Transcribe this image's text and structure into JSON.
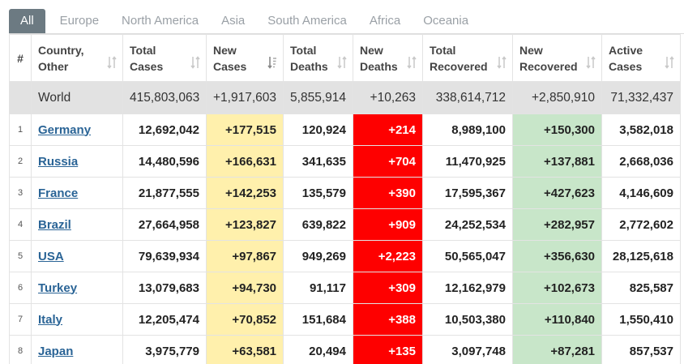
{
  "tabs": [
    "All",
    "Europe",
    "North America",
    "Asia",
    "South America",
    "Africa",
    "Oceania"
  ],
  "headers": {
    "idx": "#",
    "country": "Country, Other",
    "total_cases": "Total Cases",
    "new_cases": "New Cases",
    "total_deaths": "Total Deaths",
    "new_deaths": "New Deaths",
    "total_recovered": "Total Recovered",
    "new_recovered": "New Recovered",
    "active_cases": "Active Cases"
  },
  "world": {
    "country": "World",
    "total_cases": "415,803,063",
    "new_cases": "+1,917,603",
    "total_deaths": "5,855,914",
    "new_deaths": "+10,263",
    "total_recovered": "338,614,712",
    "new_recovered": "+2,850,910",
    "active_cases": "71,332,437"
  },
  "rows": [
    {
      "idx": "1",
      "country": "Germany",
      "total_cases": "12,692,042",
      "new_cases": "+177,515",
      "total_deaths": "120,924",
      "new_deaths": "+214",
      "total_recovered": "8,989,100",
      "new_recovered": "+150,300",
      "active_cases": "3,582,018"
    },
    {
      "idx": "2",
      "country": "Russia",
      "total_cases": "14,480,596",
      "new_cases": "+166,631",
      "total_deaths": "341,635",
      "new_deaths": "+704",
      "total_recovered": "11,470,925",
      "new_recovered": "+137,881",
      "active_cases": "2,668,036"
    },
    {
      "idx": "3",
      "country": "France",
      "total_cases": "21,877,555",
      "new_cases": "+142,253",
      "total_deaths": "135,579",
      "new_deaths": "+390",
      "total_recovered": "17,595,367",
      "new_recovered": "+427,623",
      "active_cases": "4,146,609"
    },
    {
      "idx": "4",
      "country": "Brazil",
      "total_cases": "27,664,958",
      "new_cases": "+123,827",
      "total_deaths": "639,822",
      "new_deaths": "+909",
      "total_recovered": "24,252,534",
      "new_recovered": "+282,957",
      "active_cases": "2,772,602"
    },
    {
      "idx": "5",
      "country": "USA",
      "total_cases": "79,639,934",
      "new_cases": "+97,867",
      "total_deaths": "949,269",
      "new_deaths": "+2,223",
      "total_recovered": "50,565,047",
      "new_recovered": "+356,630",
      "active_cases": "28,125,618"
    },
    {
      "idx": "6",
      "country": "Turkey",
      "total_cases": "13,079,683",
      "new_cases": "+94,730",
      "total_deaths": "91,117",
      "new_deaths": "+309",
      "total_recovered": "12,162,979",
      "new_recovered": "+102,673",
      "active_cases": "825,587"
    },
    {
      "idx": "7",
      "country": "Italy",
      "total_cases": "12,205,474",
      "new_cases": "+70,852",
      "total_deaths": "151,684",
      "new_deaths": "+388",
      "total_recovered": "10,503,380",
      "new_recovered": "+110,840",
      "active_cases": "1,550,410"
    },
    {
      "idx": "8",
      "country": "Japan",
      "total_cases": "3,975,779",
      "new_cases": "+63,581",
      "total_deaths": "20,494",
      "new_deaths": "+135",
      "total_recovered": "3,097,748",
      "new_recovered": "+87,281",
      "active_cases": "857,537"
    }
  ],
  "colors": {
    "active_tab": "#6c7a82",
    "new_cases_bg": "#fff0ac",
    "new_deaths_bg": "#fe0000",
    "new_recovered_bg": "#c8e6c9",
    "world_row_bg": "#e2e2e2",
    "country_link": "#2a6496"
  },
  "icons": {
    "sort": "sort-arrows-icon",
    "sort_desc": "sort-descending-icon"
  }
}
